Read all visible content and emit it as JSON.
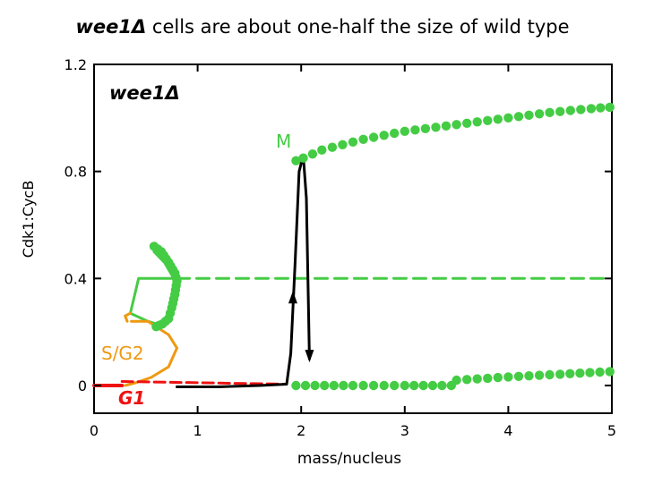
{
  "chart_data": {
    "type": "line",
    "title": {
      "gene": "wee1",
      "symbol": "Δ",
      "text": " cells are about one-half the size of wild type"
    },
    "xlabel": "mass/nucleus",
    "ylabel": "Cdk1:CycB",
    "xlim": [
      0,
      5
    ],
    "ylim": [
      -0.1,
      1.2
    ],
    "x_ticks": [
      0,
      1,
      2,
      3,
      4,
      5
    ],
    "x_tick_labels": [
      "0",
      "1",
      "2",
      "3",
      "4",
      "5"
    ],
    "y_ticks": [
      0,
      0.4,
      0.8,
      1.2
    ],
    "y_tick_labels": [
      "0",
      "0.4",
      "0.8",
      "1.2"
    ],
    "annotations": {
      "inset": {
        "text": "wee1",
        "symbol": "Δ"
      },
      "M": "M",
      "SG2": "S/G2",
      "G1": "G1"
    },
    "colors": {
      "stable": "#44cc44",
      "unstable": "#44cc44",
      "trajectory": "#000000",
      "g1_state": "#ee1111",
      "g1_unstable": "#ee1111",
      "sg2_curve": "#ee9911"
    },
    "series": [
      {
        "name": "M-state stable branch (upper)",
        "style": "dotted-green",
        "points": [
          [
            1.95,
            0.84
          ],
          [
            2.02,
            0.85
          ],
          [
            2.2,
            0.88
          ],
          [
            2.4,
            0.9
          ],
          [
            2.6,
            0.92
          ],
          [
            2.8,
            0.935
          ],
          [
            3.0,
            0.95
          ],
          [
            3.2,
            0.96
          ],
          [
            3.4,
            0.97
          ],
          [
            3.6,
            0.98
          ],
          [
            3.8,
            0.99
          ],
          [
            4.0,
            1.0
          ],
          [
            4.2,
            1.01
          ],
          [
            4.4,
            1.02
          ],
          [
            4.6,
            1.028
          ],
          [
            4.8,
            1.035
          ],
          [
            4.98,
            1.04
          ]
        ]
      },
      {
        "name": "G1 stable branch (lower)",
        "style": "dotted-green",
        "points": [
          [
            1.95,
            0.0
          ],
          [
            2.5,
            0.0
          ],
          [
            3.0,
            0.0
          ],
          [
            3.45,
            0.0
          ],
          [
            3.5,
            0.02
          ],
          [
            4.0,
            0.032
          ],
          [
            4.5,
            0.042
          ],
          [
            4.98,
            0.052
          ]
        ]
      },
      {
        "name": "S/G2 stable segment",
        "style": "dotted-green",
        "points": [
          [
            0.58,
            0.52
          ],
          [
            0.65,
            0.5
          ],
          [
            0.72,
            0.46
          ],
          [
            0.78,
            0.42
          ],
          [
            0.8,
            0.39
          ],
          [
            0.78,
            0.34
          ],
          [
            0.75,
            0.29
          ],
          [
            0.72,
            0.25
          ],
          [
            0.66,
            0.23
          ],
          [
            0.6,
            0.22
          ]
        ]
      },
      {
        "name": "Unstable steady state",
        "style": "dashed-green",
        "points": [
          [
            0.8,
            0.4
          ],
          [
            4.98,
            0.4
          ]
        ]
      },
      {
        "name": "Saddle-node connector",
        "style": "solid-green",
        "points": [
          [
            0.58,
            0.5
          ],
          [
            0.68,
            0.46
          ],
          [
            0.77,
            0.4
          ],
          [
            0.43,
            0.4
          ],
          [
            0.35,
            0.27
          ],
          [
            0.52,
            0.24
          ],
          [
            0.6,
            0.23
          ]
        ]
      },
      {
        "name": "S/G2 unstable branch",
        "style": "solid-orange",
        "points": [
          [
            0.35,
            0.27
          ],
          [
            0.3,
            0.26
          ],
          [
            0.32,
            0.24
          ]
        ]
      },
      {
        "name": "S/G2 curve to G1",
        "style": "solid-orange",
        "points": [
          [
            0.36,
            0.24
          ],
          [
            0.52,
            0.24
          ],
          [
            0.72,
            0.19
          ],
          [
            0.8,
            0.14
          ],
          [
            0.72,
            0.07
          ],
          [
            0.55,
            0.03
          ],
          [
            0.4,
            0.01
          ],
          [
            0.3,
            0.0
          ]
        ]
      },
      {
        "name": "G1 state (stable)",
        "style": "solid-red",
        "points": [
          [
            0.0,
            0.0
          ],
          [
            0.27,
            0.0
          ]
        ]
      },
      {
        "name": "G1 state (unstable)",
        "style": "dashed-red",
        "points": [
          [
            0.27,
            0.015
          ],
          [
            1.85,
            0.005
          ]
        ]
      },
      {
        "name": "Cell-cycle trajectory",
        "style": "solid-black",
        "points": [
          [
            0.8,
            -0.005
          ],
          [
            1.2,
            -0.005
          ],
          [
            1.6,
            0.0
          ],
          [
            1.86,
            0.005
          ],
          [
            1.9,
            0.12
          ],
          [
            1.94,
            0.45
          ],
          [
            1.98,
            0.8
          ],
          [
            2.02,
            0.86
          ],
          [
            2.05,
            0.7
          ],
          [
            2.07,
            0.3
          ],
          [
            2.08,
            0.1
          ]
        ]
      }
    ],
    "arrows": [
      {
        "at": [
          1.92,
          0.32
        ],
        "direction": "up"
      },
      {
        "at": [
          2.08,
          0.12
        ],
        "direction": "down"
      }
    ]
  }
}
